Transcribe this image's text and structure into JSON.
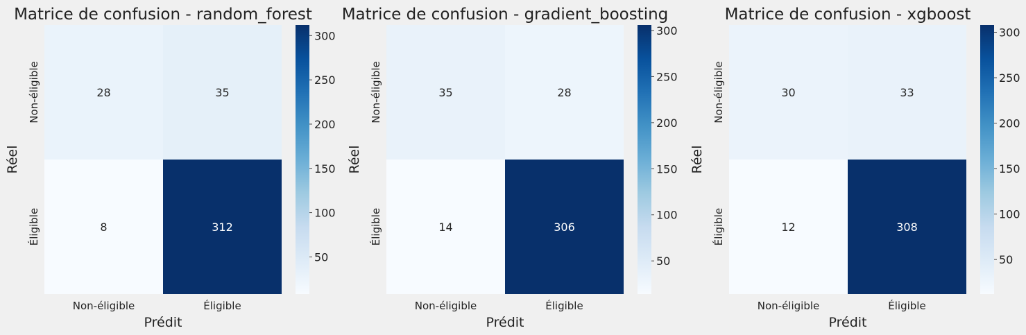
{
  "figure": {
    "background": "#f0f0f0",
    "colormap": [
      "#f7fbff",
      "#deebf7",
      "#c6dbef",
      "#9ecae1",
      "#6baed6",
      "#4292c6",
      "#2171b5",
      "#08519c",
      "#08306b"
    ]
  },
  "chart_data": [
    {
      "type": "heatmap",
      "title": "Matrice de confusion - random_forest",
      "xlabel": "Prédit",
      "ylabel": "Réel",
      "x_categories": [
        "Non-éligible",
        "Éligible"
      ],
      "y_categories": [
        "Non-éligible",
        "Éligible"
      ],
      "values": [
        [
          28,
          35
        ],
        [
          8,
          312
        ]
      ],
      "vmin": 8,
      "vmax": 312,
      "colorbar_ticks": [
        50,
        100,
        150,
        200,
        250,
        300
      ]
    },
    {
      "type": "heatmap",
      "title": "Matrice de confusion - gradient_boosting",
      "xlabel": "Prédit",
      "ylabel": "Réel",
      "x_categories": [
        "Non-éligible",
        "Éligible"
      ],
      "y_categories": [
        "Non-éligible",
        "Éligible"
      ],
      "values": [
        [
          35,
          28
        ],
        [
          14,
          306
        ]
      ],
      "vmin": 14,
      "vmax": 306,
      "colorbar_ticks": [
        50,
        100,
        150,
        200,
        250,
        300
      ]
    },
    {
      "type": "heatmap",
      "title": "Matrice de confusion - xgboost",
      "xlabel": "Prédit",
      "ylabel": "Réel",
      "x_categories": [
        "Non-éligible",
        "Éligible"
      ],
      "y_categories": [
        "Non-éligible",
        "Éligible"
      ],
      "values": [
        [
          30,
          33
        ],
        [
          12,
          308
        ]
      ],
      "vmin": 12,
      "vmax": 308,
      "colorbar_ticks": [
        50,
        100,
        150,
        200,
        250,
        300
      ]
    }
  ]
}
